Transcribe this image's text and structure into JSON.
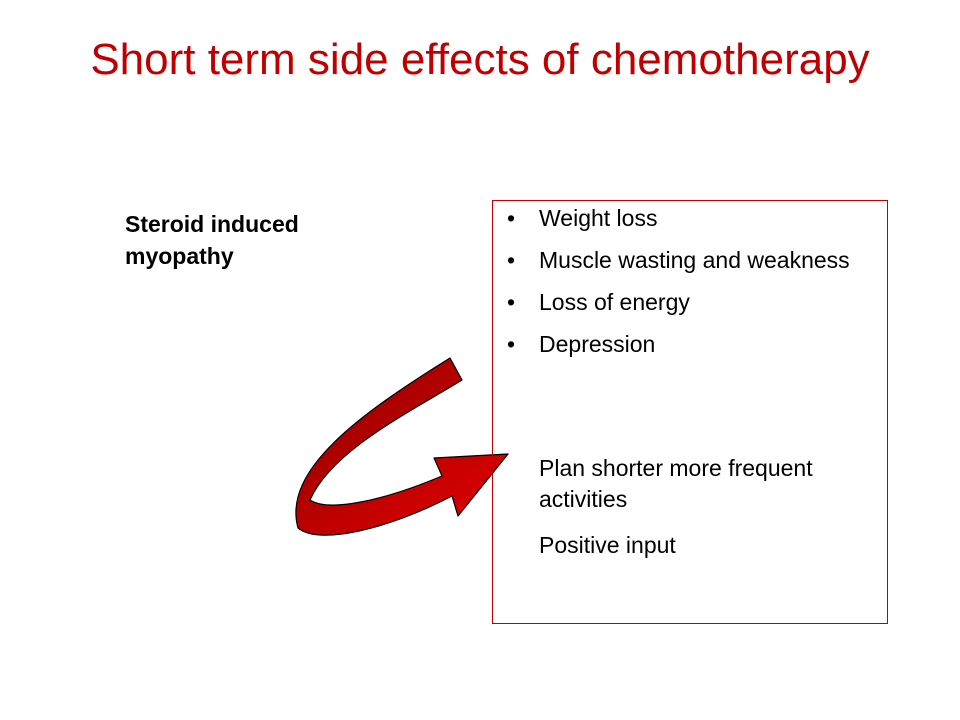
{
  "slide": {
    "title": "Short term side effects of chemotherapy",
    "side_label": "Steroid induced myopathy",
    "bullets": [
      "Weight loss",
      "Muscle wasting and weakness",
      "Loss of energy",
      "Depression"
    ],
    "notes": [
      "Plan shorter more frequent activities",
      "Positive input"
    ],
    "colors": {
      "title": "#c00000",
      "box_border": "#c00000",
      "arrow_fill": "#b00000",
      "arrow_dark": "#7a0000"
    },
    "arrow_icon": "curved-u-turn-arrow-icon"
  }
}
